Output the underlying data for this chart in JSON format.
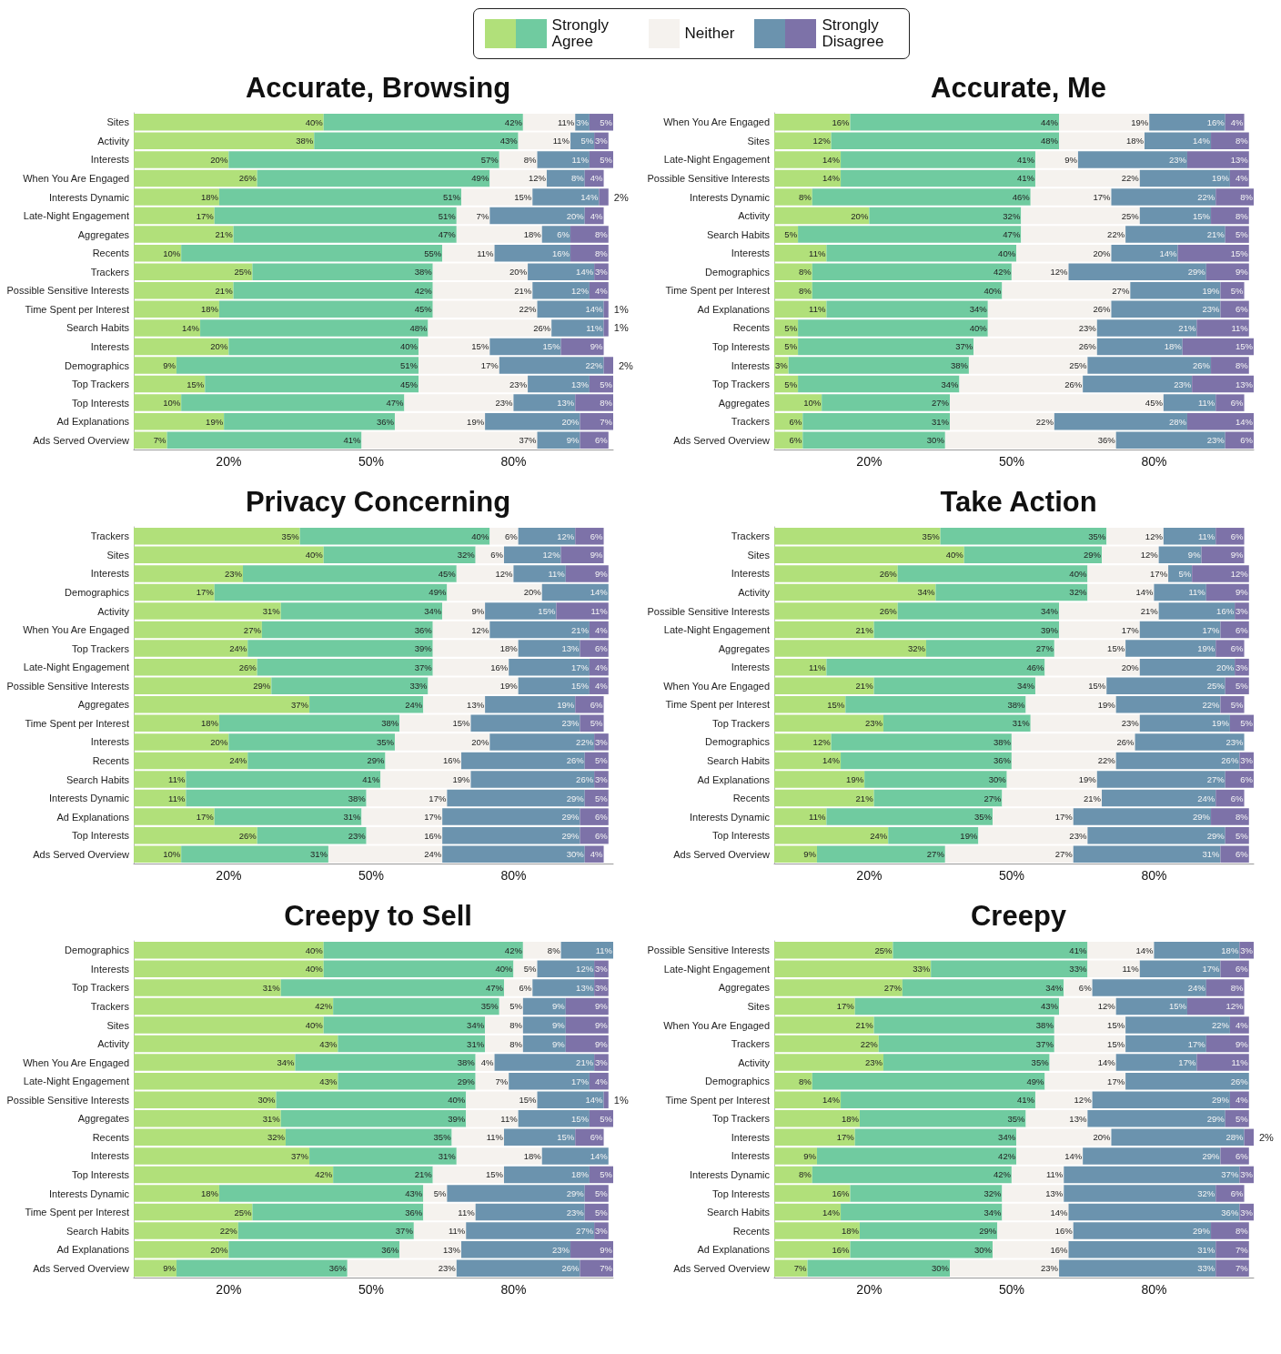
{
  "chart_data": [
    {
      "type": "bar",
      "orientation": "horizontal",
      "stacked": true,
      "legend": "top",
      "title": "Accurate, Browsing",
      "xlim": [
        0,
        101
      ],
      "xticks": [
        {
          "value": 20,
          "label": "20%"
        },
        {
          "value": 50,
          "label": "50%"
        },
        {
          "value": 80,
          "label": "80%"
        }
      ],
      "categories": [
        "Sites",
        "Activity",
        "Interests",
        "When You Are Engaged",
        "Interests Dynamic",
        "Late-Night Engagement",
        "Aggregates",
        "Recents",
        "Trackers",
        "Possible Sensitive Interests",
        "Time Spent per Interest",
        "Search Habits",
        "Interests",
        "Demographics",
        "Top Trackers",
        "Top Interests",
        "Ad Explanations",
        "Ads Served Overview"
      ],
      "series": [
        {
          "name": "Strongly Agree",
          "color": "#b1e07a",
          "values": [
            40,
            38,
            20,
            26,
            18,
            17,
            21,
            10,
            25,
            21,
            18,
            14,
            20,
            9,
            15,
            10,
            19,
            7
          ],
          "value_labels": [
            "40%",
            "38%",
            "20%",
            "26%",
            "18%",
            "17%",
            "21%",
            "10%",
            "25%",
            "21%",
            "18%",
            "14%",
            "20%",
            "9%",
            "15%",
            "10%",
            "19%",
            "7%"
          ]
        },
        {
          "color": "#70cba0",
          "values": [
            42,
            43,
            57,
            49,
            51,
            51,
            47,
            55,
            38,
            42,
            45,
            48,
            40,
            51,
            45,
            47,
            36,
            41
          ],
          "value_labels": [
            "42%",
            "43%",
            "57%",
            "49%",
            "51%",
            "51%",
            "47%",
            "55%",
            "38%",
            "42%",
            "45%",
            "48%",
            "40%",
            "51%",
            "45%",
            "47%",
            "36%",
            "41%"
          ]
        },
        {
          "name": "Neither",
          "color": "#f5f2ee",
          "values": [
            11,
            11,
            8,
            12,
            15,
            7,
            18,
            11,
            20,
            21,
            22,
            26,
            15,
            17,
            23,
            23,
            19,
            37
          ],
          "value_labels": [
            "11%",
            "11%",
            "8%",
            "12%",
            "15%",
            "7%",
            "18%",
            "11%",
            "20%",
            "21%",
            "22%",
            "26%",
            "15%",
            "17%",
            "23%",
            "23%",
            "19%",
            "37%"
          ]
        },
        {
          "color": "#6b93ae",
          "values": [
            3,
            5,
            11,
            8,
            14,
            20,
            6,
            16,
            14,
            12,
            14,
            11,
            15,
            22,
            13,
            13,
            20,
            9
          ],
          "value_labels": [
            "3%",
            "5%",
            "11%",
            "8%",
            "14%",
            "20%",
            "6%",
            "16%",
            "14%",
            "12%",
            "14%",
            "11%",
            "15%",
            "22%",
            "13%",
            "13%",
            "20%",
            "9%"
          ]
        },
        {
          "name": "Strongly Disagree",
          "color": "#7d72a8",
          "values": [
            5,
            3,
            5,
            4,
            2,
            4,
            8,
            8,
            3,
            4,
            1,
            1,
            9,
            2,
            5,
            8,
            7,
            6
          ],
          "value_labels": [
            "5%",
            "3%",
            "5%",
            "4%",
            "2%",
            "4%",
            "8%",
            "8%",
            "3%",
            "4%",
            "1%",
            "1%",
            "9%",
            "2%",
            "5%",
            "8%",
            "7%",
            "6%"
          ]
        }
      ]
    },
    {
      "type": "bar",
      "orientation": "horizontal",
      "stacked": true,
      "title": "Accurate, Me",
      "xlim": [
        0,
        101
      ],
      "xticks": [
        {
          "value": 20,
          "label": "20%"
        },
        {
          "value": 50,
          "label": "50%"
        },
        {
          "value": 80,
          "label": "80%"
        }
      ],
      "categories": [
        "When You Are Engaged",
        "Sites",
        "Late-Night Engagement",
        "Possible Sensitive Interests",
        "Interests Dynamic",
        "Activity",
        "Search Habits",
        "Interests",
        "Demographics",
        "Time Spent per Interest",
        "Ad Explanations",
        "Recents",
        "Top Interests",
        "Interests",
        "Top Trackers",
        "Aggregates",
        "Trackers",
        "Ads Served Overview"
      ],
      "series": [
        {
          "color": "#b1e07a",
          "values": [
            16,
            12,
            14,
            14,
            8,
            20,
            5,
            11,
            8,
            8,
            11,
            5,
            5,
            3,
            5,
            10,
            6,
            6
          ],
          "value_labels": [
            "16%",
            "12%",
            "14%",
            "14%",
            "8%",
            "20%",
            "5%",
            "11%",
            "8%",
            "8%",
            "11%",
            "5%",
            "5%",
            "3%",
            "5%",
            "10%",
            "6%",
            "6%"
          ]
        },
        {
          "color": "#70cba0",
          "values": [
            44,
            48,
            41,
            41,
            46,
            32,
            47,
            40,
            42,
            40,
            34,
            40,
            37,
            38,
            34,
            27,
            31,
            30
          ],
          "value_labels": [
            "44%",
            "48%",
            "41%",
            "41%",
            "46%",
            "32%",
            "47%",
            "40%",
            "42%",
            "40%",
            "34%",
            "40%",
            "37%",
            "38%",
            "34%",
            "27%",
            "31%",
            "30%"
          ]
        },
        {
          "color": "#f5f2ee",
          "values": [
            19,
            18,
            9,
            22,
            17,
            25,
            22,
            20,
            12,
            27,
            26,
            23,
            26,
            25,
            26,
            45,
            22,
            36
          ],
          "value_labels": [
            "19%",
            "18%",
            "9%",
            "22%",
            "17%",
            "25%",
            "22%",
            "20%",
            "12%",
            "27%",
            "26%",
            "23%",
            "26%",
            "25%",
            "26%",
            "45%",
            "22%",
            "36%"
          ]
        },
        {
          "color": "#6b93ae",
          "values": [
            16,
            14,
            23,
            19,
            22,
            15,
            21,
            14,
            29,
            19,
            23,
            21,
            18,
            26,
            23,
            11,
            28,
            23
          ],
          "value_labels": [
            "16%",
            "14%",
            "23%",
            "19%",
            "22%",
            "15%",
            "21%",
            "14%",
            "29%",
            "19%",
            "23%",
            "21%",
            "18%",
            "26%",
            "23%",
            "11%",
            "28%",
            "23%"
          ]
        },
        {
          "color": "#7d72a8",
          "values": [
            4,
            8,
            13,
            4,
            8,
            8,
            5,
            15,
            9,
            5,
            6,
            11,
            15,
            8,
            13,
            6,
            14,
            6
          ],
          "value_labels": [
            "4%",
            "8%",
            "13%",
            "4%",
            "8%",
            "8%",
            "5%",
            "15%",
            "9%",
            "5%",
            "6%",
            "11%",
            "15%",
            "8%",
            "13%",
            "6%",
            "14%",
            "6%"
          ]
        }
      ]
    },
    {
      "type": "bar",
      "orientation": "horizontal",
      "stacked": true,
      "title": "Privacy Concerning",
      "xlim": [
        0,
        101
      ],
      "xticks": [
        {
          "value": 20,
          "label": "20%"
        },
        {
          "value": 50,
          "label": "50%"
        },
        {
          "value": 80,
          "label": "80%"
        }
      ],
      "categories": [
        "Trackers",
        "Sites",
        "Interests",
        "Demographics",
        "Activity",
        "When You Are Engaged",
        "Top Trackers",
        "Late-Night Engagement",
        "Possible Sensitive Interests",
        "Aggregates",
        "Time Spent per Interest",
        "Interests",
        "Recents",
        "Search Habits",
        "Interests Dynamic",
        "Ad Explanations",
        "Top Interests",
        "Ads Served Overview"
      ],
      "series": [
        {
          "color": "#b1e07a",
          "values": [
            35,
            40,
            23,
            17,
            31,
            27,
            24,
            26,
            29,
            37,
            18,
            20,
            24,
            11,
            11,
            17,
            26,
            10
          ],
          "value_labels": [
            "35%",
            "40%",
            "23%",
            "17%",
            "31%",
            "27%",
            "24%",
            "26%",
            "29%",
            "37%",
            "18%",
            "20%",
            "24%",
            "11%",
            "11%",
            "17%",
            "26%",
            "10%"
          ]
        },
        {
          "color": "#70cba0",
          "values": [
            40,
            32,
            45,
            49,
            34,
            36,
            39,
            37,
            33,
            24,
            38,
            35,
            29,
            41,
            38,
            31,
            23,
            31
          ],
          "value_labels": [
            "40%",
            "32%",
            "45%",
            "49%",
            "34%",
            "36%",
            "39%",
            "37%",
            "33%",
            "24%",
            "38%",
            "35%",
            "29%",
            "41%",
            "38%",
            "31%",
            "23%",
            "31%"
          ]
        },
        {
          "color": "#f5f2ee",
          "values": [
            6,
            6,
            12,
            20,
            9,
            12,
            18,
            16,
            19,
            13,
            15,
            20,
            16,
            19,
            17,
            17,
            16,
            24
          ],
          "value_labels": [
            "6%",
            "6%",
            "12%",
            "20%",
            "9%",
            "12%",
            "18%",
            "16%",
            "19%",
            "13%",
            "15%",
            "20%",
            "16%",
            "19%",
            "17%",
            "17%",
            "16%",
            "24%"
          ]
        },
        {
          "color": "#6b93ae",
          "values": [
            12,
            12,
            11,
            14,
            15,
            21,
            13,
            17,
            15,
            19,
            23,
            22,
            26,
            26,
            29,
            29,
            29,
            30
          ],
          "value_labels": [
            "12%",
            "12%",
            "11%",
            "14%",
            "15%",
            "21%",
            "13%",
            "17%",
            "15%",
            "19%",
            "23%",
            "22%",
            "26%",
            "26%",
            "29%",
            "29%",
            "29%",
            "30%"
          ]
        },
        {
          "color": "#7d72a8",
          "values": [
            6,
            9,
            9,
            0,
            11,
            4,
            6,
            4,
            4,
            6,
            5,
            3,
            5,
            3,
            5,
            6,
            6,
            4
          ],
          "value_labels": [
            "6%",
            "9%",
            "9%",
            null,
            "11%",
            "4%",
            "6%",
            "4%",
            "4%",
            "6%",
            "5%",
            "3%",
            "5%",
            "3%",
            "5%",
            "6%",
            "6%",
            "4%"
          ]
        }
      ]
    },
    {
      "type": "bar",
      "orientation": "horizontal",
      "stacked": true,
      "title": "Take Action",
      "xlim": [
        0,
        101
      ],
      "xticks": [
        {
          "value": 20,
          "label": "20%"
        },
        {
          "value": 50,
          "label": "50%"
        },
        {
          "value": 80,
          "label": "80%"
        }
      ],
      "categories": [
        "Trackers",
        "Sites",
        "Interests",
        "Activity",
        "Possible Sensitive Interests",
        "Late-Night Engagement",
        "Aggregates",
        "Interests",
        "When You Are Engaged",
        "Time Spent per Interest",
        "Top Trackers",
        "Demographics",
        "Search Habits",
        "Ad Explanations",
        "Recents",
        "Interests Dynamic",
        "Top Interests",
        "Ads Served Overview"
      ],
      "series": [
        {
          "color": "#b1e07a",
          "values": [
            35,
            40,
            26,
            34,
            26,
            21,
            32,
            11,
            21,
            15,
            23,
            12,
            14,
            19,
            21,
            11,
            24,
            9
          ],
          "value_labels": [
            "35%",
            "40%",
            "26%",
            "34%",
            "26%",
            "21%",
            "32%",
            "11%",
            "21%",
            "15%",
            "23%",
            "12%",
            "14%",
            "19%",
            "21%",
            "11%",
            "24%",
            "9%"
          ]
        },
        {
          "color": "#70cba0",
          "values": [
            35,
            29,
            40,
            32,
            34,
            39,
            27,
            46,
            34,
            38,
            31,
            38,
            36,
            30,
            27,
            35,
            19,
            27
          ],
          "value_labels": [
            "35%",
            "29%",
            "40%",
            "32%",
            "34%",
            "39%",
            "27%",
            "46%",
            "34%",
            "38%",
            "31%",
            "38%",
            "36%",
            "30%",
            "27%",
            "35%",
            "19%",
            "27%"
          ]
        },
        {
          "color": "#f5f2ee",
          "values": [
            12,
            12,
            17,
            14,
            21,
            17,
            15,
            20,
            15,
            19,
            23,
            26,
            22,
            19,
            21,
            17,
            23,
            27
          ],
          "value_labels": [
            "12%",
            "12%",
            "17%",
            "14%",
            "21%",
            "17%",
            "15%",
            "20%",
            "15%",
            "19%",
            "23%",
            "26%",
            "22%",
            "19%",
            "21%",
            "17%",
            "23%",
            "27%"
          ]
        },
        {
          "color": "#6b93ae",
          "values": [
            11,
            9,
            5,
            11,
            16,
            17,
            19,
            20,
            25,
            22,
            19,
            23,
            26,
            27,
            24,
            29,
            29,
            31
          ],
          "value_labels": [
            "11%",
            "9%",
            "5%",
            "11%",
            "16%",
            "17%",
            "19%",
            "20%",
            "25%",
            "22%",
            "19%",
            "23%",
            "26%",
            "27%",
            "24%",
            "29%",
            "29%",
            "31%"
          ]
        },
        {
          "color": "#7d72a8",
          "values": [
            6,
            9,
            12,
            9,
            3,
            6,
            6,
            3,
            5,
            5,
            5,
            0,
            3,
            6,
            6,
            8,
            5,
            6
          ],
          "value_labels": [
            "6%",
            "9%",
            "12%",
            "9%",
            "3%",
            "6%",
            "6%",
            "3%",
            "5%",
            "5%",
            "5%",
            null,
            "3%",
            "6%",
            "6%",
            "8%",
            "5%",
            "6%"
          ]
        }
      ]
    },
    {
      "type": "bar",
      "orientation": "horizontal",
      "stacked": true,
      "title": "Creepy to Sell",
      "xlim": [
        0,
        101
      ],
      "xticks": [
        {
          "value": 20,
          "label": "20%"
        },
        {
          "value": 50,
          "label": "50%"
        },
        {
          "value": 80,
          "label": "80%"
        }
      ],
      "categories": [
        "Demographics",
        "Interests",
        "Top Trackers",
        "Trackers",
        "Sites",
        "Activity",
        "When You Are Engaged",
        "Late-Night Engagement",
        "Possible Sensitive Interests",
        "Aggregates",
        "Recents",
        "Interests",
        "Top Interests",
        "Interests Dynamic",
        "Time Spent per Interest",
        "Search Habits",
        "Ad Explanations",
        "Ads Served Overview"
      ],
      "series": [
        {
          "color": "#b1e07a",
          "values": [
            40,
            40,
            31,
            42,
            40,
            43,
            34,
            43,
            30,
            31,
            32,
            37,
            42,
            18,
            25,
            22,
            20,
            9
          ],
          "value_labels": [
            "40%",
            "40%",
            "31%",
            "42%",
            "40%",
            "43%",
            "34%",
            "43%",
            "30%",
            "31%",
            "32%",
            "37%",
            "42%",
            "18%",
            "25%",
            "22%",
            "20%",
            "9%"
          ]
        },
        {
          "color": "#70cba0",
          "values": [
            42,
            40,
            47,
            35,
            34,
            31,
            38,
            29,
            40,
            39,
            35,
            31,
            21,
            43,
            36,
            37,
            36,
            36
          ],
          "value_labels": [
            "42%",
            "40%",
            "47%",
            "35%",
            "34%",
            "31%",
            "38%",
            "29%",
            "40%",
            "39%",
            "35%",
            "31%",
            "21%",
            "43%",
            "36%",
            "37%",
            "36%",
            "36%"
          ]
        },
        {
          "color": "#f5f2ee",
          "values": [
            8,
            5,
            6,
            5,
            8,
            8,
            4,
            7,
            15,
            11,
            11,
            18,
            15,
            5,
            11,
            11,
            13,
            23
          ],
          "value_labels": [
            "8%",
            "5%",
            "6%",
            "5%",
            "8%",
            "8%",
            "4%",
            "7%",
            "15%",
            "11%",
            "11%",
            "18%",
            "15%",
            "5%",
            "11%",
            "11%",
            "13%",
            "23%"
          ]
        },
        {
          "color": "#6b93ae",
          "values": [
            11,
            12,
            13,
            9,
            9,
            9,
            21,
            17,
            14,
            15,
            15,
            14,
            18,
            29,
            23,
            27,
            23,
            26
          ],
          "value_labels": [
            "11%",
            "12%",
            "13%",
            "9%",
            "9%",
            "9%",
            "21%",
            "17%",
            "14%",
            "15%",
            "15%",
            "14%",
            "18%",
            "29%",
            "23%",
            "27%",
            "23%",
            "26%"
          ]
        },
        {
          "color": "#7d72a8",
          "values": [
            0,
            3,
            3,
            9,
            9,
            9,
            3,
            4,
            1,
            5,
            6,
            0,
            5,
            5,
            5,
            3,
            9,
            7
          ],
          "value_labels": [
            null,
            "3%",
            "3%",
            "9%",
            "9%",
            "9%",
            "3%",
            "4%",
            "1%",
            "5%",
            "6%",
            null,
            "5%",
            "5%",
            "5%",
            "3%",
            "9%",
            "7%"
          ]
        }
      ]
    },
    {
      "type": "bar",
      "orientation": "horizontal",
      "stacked": true,
      "title": "Creepy",
      "xlim": [
        0,
        101
      ],
      "xticks": [
        {
          "value": 20,
          "label": "20%"
        },
        {
          "value": 50,
          "label": "50%"
        },
        {
          "value": 80,
          "label": "80%"
        }
      ],
      "categories": [
        "Possible Sensitive Interests",
        "Late-Night Engagement",
        "Aggregates",
        "Sites",
        "When You Are Engaged",
        "Trackers",
        "Activity",
        "Demographics",
        "Time Spent per Interest",
        "Top Trackers",
        "Interests",
        "Interests",
        "Interests Dynamic",
        "Top Interests",
        "Search Habits",
        "Recents",
        "Ad Explanations",
        "Ads Served Overview"
      ],
      "series": [
        {
          "color": "#b1e07a",
          "values": [
            25,
            33,
            27,
            17,
            21,
            22,
            23,
            8,
            14,
            18,
            17,
            9,
            8,
            16,
            14,
            18,
            16,
            7
          ],
          "value_labels": [
            "25%",
            "33%",
            "27%",
            "17%",
            "21%",
            "22%",
            "23%",
            "8%",
            "14%",
            "18%",
            "17%",
            "9%",
            "8%",
            "16%",
            "14%",
            "18%",
            "16%",
            "7%"
          ]
        },
        {
          "color": "#70cba0",
          "values": [
            41,
            33,
            34,
            43,
            38,
            37,
            35,
            49,
            41,
            35,
            34,
            42,
            42,
            32,
            34,
            29,
            30,
            30
          ],
          "value_labels": [
            "41%",
            "33%",
            "34%",
            "43%",
            "38%",
            "37%",
            "35%",
            "49%",
            "41%",
            "35%",
            "34%",
            "42%",
            "42%",
            "32%",
            "34%",
            "29%",
            "30%",
            "30%"
          ]
        },
        {
          "color": "#f5f2ee",
          "values": [
            14,
            11,
            6,
            12,
            15,
            15,
            14,
            17,
            12,
            13,
            20,
            14,
            11,
            13,
            14,
            16,
            16,
            23
          ],
          "value_labels": [
            "14%",
            "11%",
            "6%",
            "12%",
            "15%",
            "15%",
            "14%",
            "17%",
            "12%",
            "13%",
            "20%",
            "14%",
            "11%",
            "13%",
            "14%",
            "16%",
            "16%",
            "23%"
          ]
        },
        {
          "color": "#6b93ae",
          "values": [
            18,
            17,
            24,
            15,
            22,
            17,
            17,
            26,
            29,
            29,
            28,
            29,
            37,
            32,
            36,
            29,
            31,
            33
          ],
          "value_labels": [
            "18%",
            "17%",
            "24%",
            "15%",
            "22%",
            "17%",
            "17%",
            "26%",
            "29%",
            "29%",
            "28%",
            "29%",
            "37%",
            "32%",
            "36%",
            "29%",
            "31%",
            "33%"
          ]
        },
        {
          "color": "#7d72a8",
          "values": [
            3,
            6,
            8,
            12,
            4,
            9,
            11,
            0,
            4,
            5,
            2,
            6,
            3,
            6,
            3,
            8,
            7,
            7
          ],
          "value_labels": [
            "3%",
            "6%",
            "8%",
            "12%",
            "4%",
            "9%",
            "11%",
            null,
            "4%",
            "5%",
            "2%",
            "6%",
            "3%",
            "6%",
            "3%",
            "8%",
            "7%",
            "7%"
          ]
        }
      ]
    }
  ]
}
